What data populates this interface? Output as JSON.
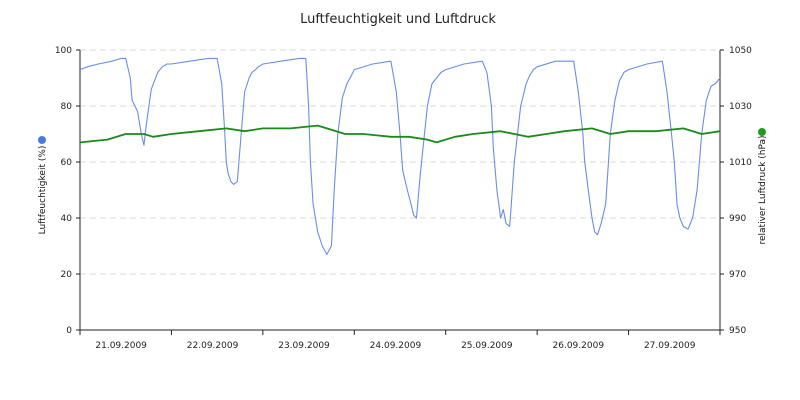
{
  "chart_data": {
    "type": "line",
    "title": "Luftfeuchtigkeit und Luftdruck",
    "x_tick_labels": [
      "21.09.2009",
      "22.09.2009",
      "23.09.2009",
      "24.09.2009",
      "25.09.2009",
      "26.09.2009",
      "27.09.2009"
    ],
    "y_left": {
      "label": "Luftfeuchtigkeit (%)",
      "ylim": [
        0,
        100
      ],
      "ticks": [
        0,
        20,
        40,
        60,
        80,
        100
      ]
    },
    "y_right": {
      "label": "relativer Luftdruck (hPa)",
      "ylim": [
        950,
        1050
      ],
      "ticks": [
        950,
        970,
        990,
        1010,
        1030,
        1050
      ]
    },
    "grid": {
      "horizontal": true,
      "style": "dashed"
    },
    "x_unit": "days (day 0 = 20.09.2009 12:00, tick labels at days 1..7)",
    "series": [
      {
        "axis": "left",
        "color": "#6a8de6",
        "marker_color": "#4a7ae0",
        "x": [
          0.0,
          0.08,
          0.2,
          0.35,
          0.45,
          0.5,
          0.55,
          0.57,
          0.6,
          0.63,
          0.67,
          0.7,
          0.72,
          0.78,
          0.85,
          0.9,
          0.95,
          1.0,
          1.2,
          1.4,
          1.5,
          1.55,
          1.58,
          1.6,
          1.62,
          1.65,
          1.68,
          1.72,
          1.8,
          1.85,
          1.88,
          1.92,
          1.95,
          2.0,
          2.2,
          2.4,
          2.47,
          2.5,
          2.52,
          2.55,
          2.6,
          2.65,
          2.7,
          2.75,
          2.78,
          2.82,
          2.87,
          2.92,
          2.97,
          3.0,
          3.2,
          3.4,
          3.46,
          3.5,
          3.53,
          3.58,
          3.62,
          3.65,
          3.68,
          3.72,
          3.8,
          3.85,
          3.9,
          3.95,
          4.0,
          4.2,
          4.4,
          4.45,
          4.5,
          4.52,
          4.56,
          4.6,
          4.63,
          4.66,
          4.7,
          4.75,
          4.82,
          4.88,
          4.92,
          4.96,
          5.0,
          5.2,
          5.4,
          5.45,
          5.5,
          5.52,
          5.56,
          5.6,
          5.63,
          5.66,
          5.7,
          5.75,
          5.8,
          5.85,
          5.9,
          5.95,
          6.0,
          6.2,
          6.37,
          6.42,
          6.47,
          6.5,
          6.53,
          6.56,
          6.6,
          6.65,
          6.7,
          6.75,
          6.8,
          6.85,
          6.9,
          6.95,
          7.0
        ],
        "values": [
          93,
          94,
          95,
          96,
          97,
          97,
          90,
          82,
          80,
          78,
          70,
          66,
          72,
          86,
          92,
          94,
          95,
          95,
          96,
          97,
          97,
          88,
          72,
          60,
          56,
          53,
          52,
          53,
          85,
          90,
          92,
          93,
          94,
          95,
          96,
          97,
          97,
          80,
          60,
          45,
          35,
          30,
          27,
          30,
          50,
          70,
          83,
          88,
          91,
          93,
          95,
          96,
          85,
          70,
          57,
          50,
          45,
          41,
          40,
          55,
          80,
          88,
          90,
          92,
          93,
          95,
          96,
          92,
          80,
          65,
          50,
          40,
          43,
          38,
          37,
          60,
          80,
          88,
          91,
          93,
          94,
          96,
          96,
          85,
          70,
          60,
          50,
          40,
          35,
          34,
          38,
          45,
          70,
          82,
          89,
          92,
          93,
          95,
          96,
          85,
          70,
          60,
          45,
          40,
          37,
          36,
          40,
          50,
          70,
          82,
          87,
          88,
          90
        ]
      },
      {
        "axis": "right",
        "color": "#1a8a1a",
        "marker_color": "#1e9a1e",
        "x": [
          0.0,
          0.3,
          0.5,
          0.7,
          0.8,
          1.0,
          1.3,
          1.6,
          1.8,
          2.0,
          2.3,
          2.6,
          2.7,
          2.9,
          3.1,
          3.4,
          3.6,
          3.8,
          3.9,
          4.1,
          4.3,
          4.6,
          4.9,
          5.1,
          5.3,
          5.6,
          5.8,
          6.0,
          6.3,
          6.6,
          6.8,
          7.0
        ],
        "values": [
          1017,
          1018,
          1020,
          1020,
          1019,
          1020,
          1021,
          1022,
          1021,
          1022,
          1022,
          1023,
          1022,
          1020,
          1020,
          1019,
          1019,
          1018,
          1017,
          1019,
          1020,
          1021,
          1019,
          1020,
          1021,
          1022,
          1020,
          1021,
          1021,
          1022,
          1020,
          1021
        ]
      }
    ]
  }
}
